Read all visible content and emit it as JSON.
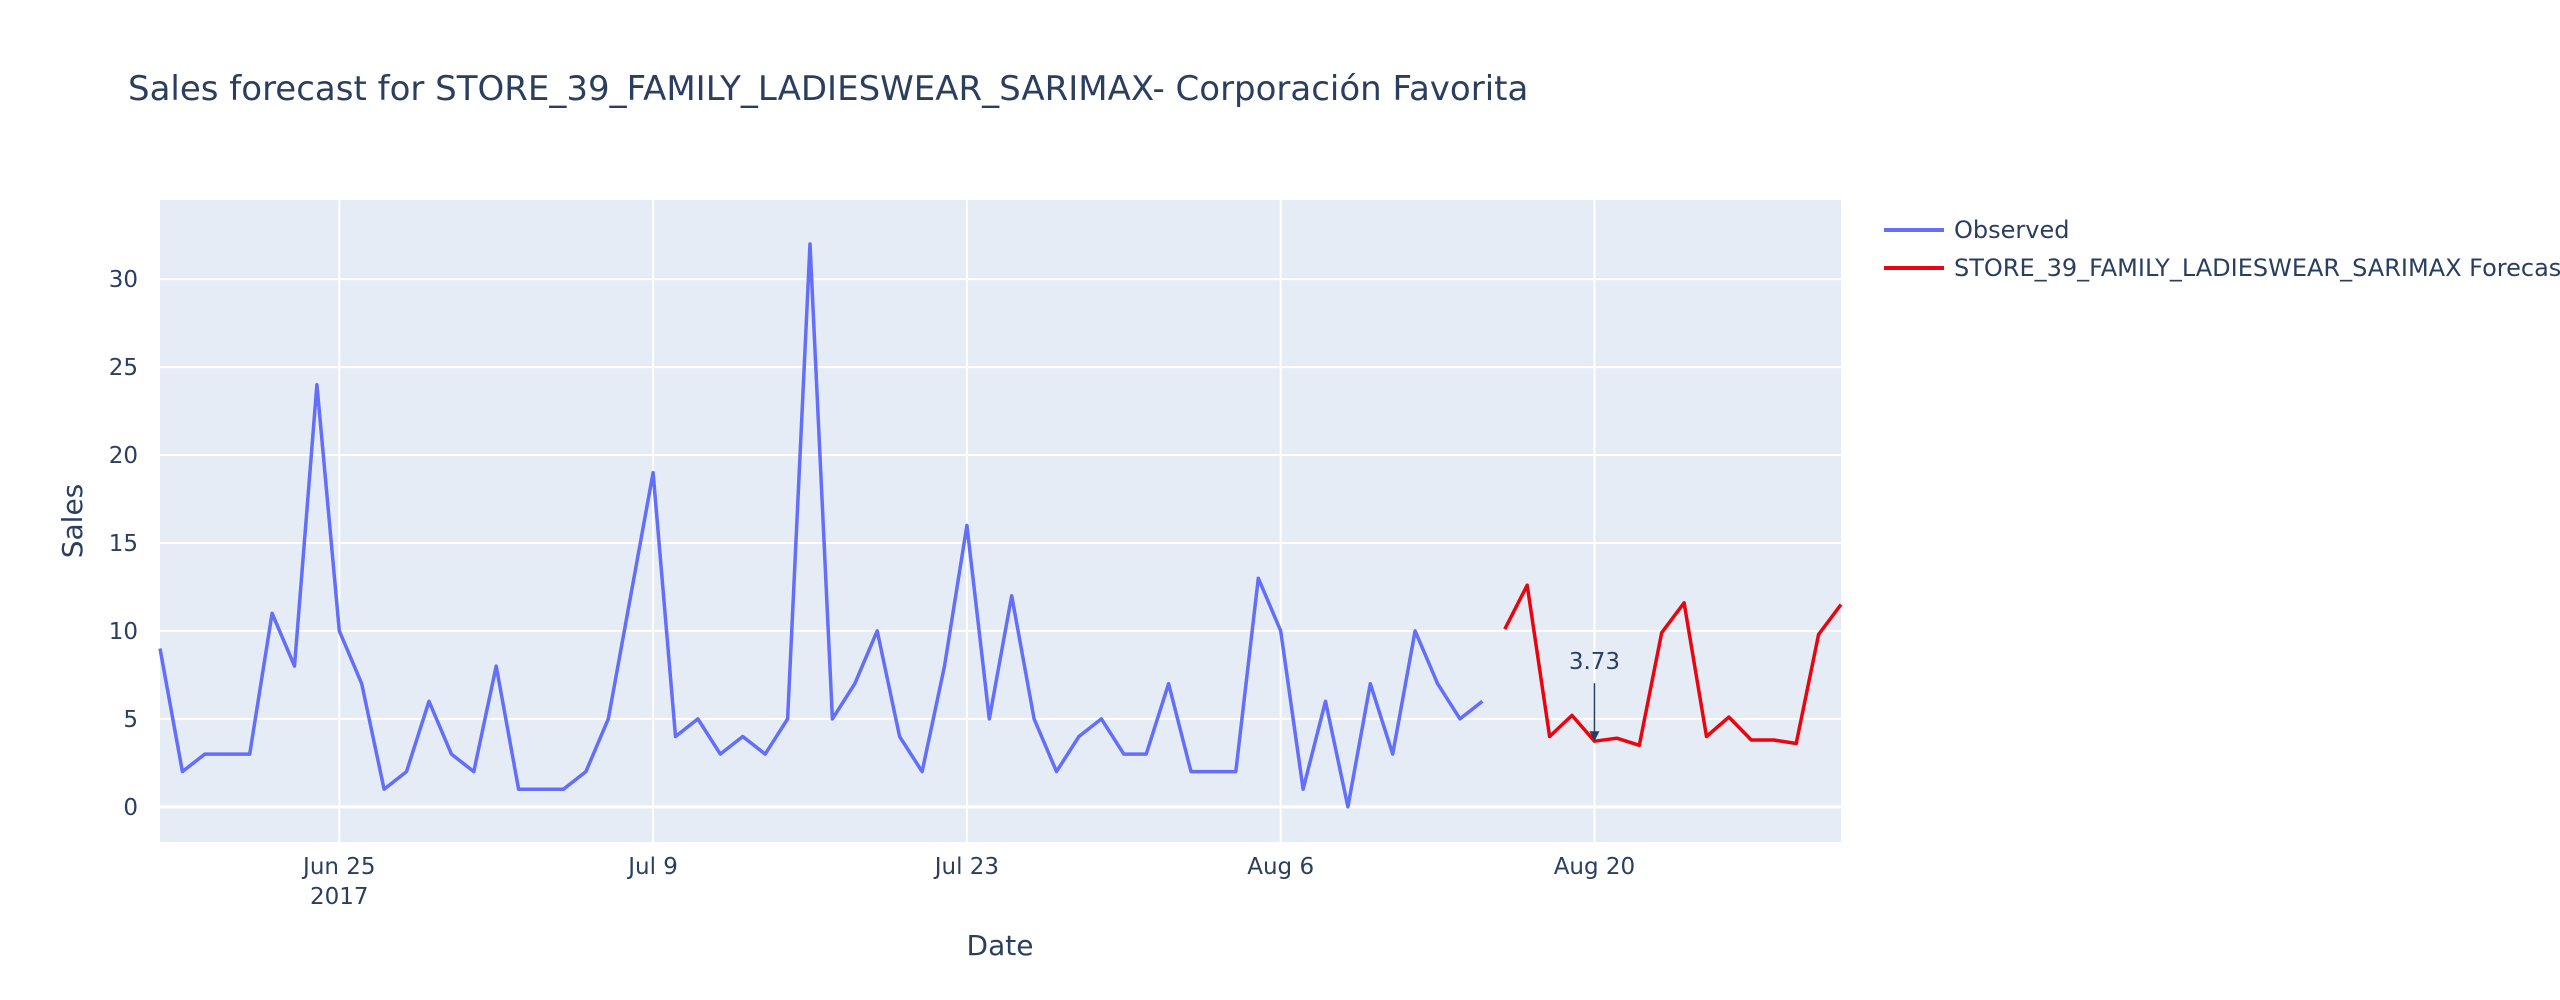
{
  "chart_data": {
    "type": "line",
    "title": "Sales forecast for STORE_39_FAMILY_LADIESWEAR_SARIMAX- Corporación Favorita",
    "xlabel": "Date",
    "ylabel": "Sales",
    "xlim": [
      "2017-06-17",
      "2017-08-31"
    ],
    "ylim": [
      -2,
      34.5
    ],
    "x_ticks": [
      {
        "date": "2017-06-25",
        "label": "Jun 25",
        "sublabel": "2017"
      },
      {
        "date": "2017-07-09",
        "label": "Jul 9",
        "sublabel": ""
      },
      {
        "date": "2017-07-23",
        "label": "Jul 23",
        "sublabel": ""
      },
      {
        "date": "2017-08-06",
        "label": "Aug 6",
        "sublabel": ""
      },
      {
        "date": "2017-08-20",
        "label": "Aug 20",
        "sublabel": ""
      }
    ],
    "y_ticks": [
      0,
      5,
      10,
      15,
      20,
      25,
      30
    ],
    "grid": true,
    "legend_position": "top-right",
    "series": [
      {
        "name": "Observed",
        "color": "#636efa",
        "start_date": "2017-06-17",
        "values": [
          9,
          2,
          3,
          3,
          3,
          11,
          8,
          24,
          10,
          7,
          1,
          2,
          6,
          3,
          2,
          8,
          1,
          1,
          1,
          2,
          5,
          12,
          19,
          4,
          5,
          3,
          4,
          3,
          5,
          32,
          5,
          7,
          10,
          4,
          2,
          8,
          16,
          5,
          12,
          5,
          2,
          4,
          5,
          3,
          3,
          7,
          2,
          2,
          2,
          13,
          10,
          1,
          6,
          0,
          7,
          3,
          10,
          7,
          5,
          6
        ]
      },
      {
        "name": "STORE_39_FAMILY_LADIESWEAR_SARIMAX Forecast",
        "color": "#e8050f",
        "start_date": "2017-08-16",
        "values": [
          10.1,
          12.6,
          4.0,
          5.2,
          3.73,
          3.9,
          3.5,
          9.9,
          11.6,
          4.0,
          5.1,
          3.8,
          3.8,
          3.6,
          9.8,
          11.5
        ]
      }
    ],
    "annotations": [
      {
        "text": "3.73",
        "date": "2017-08-20",
        "value": 3.73
      }
    ]
  }
}
